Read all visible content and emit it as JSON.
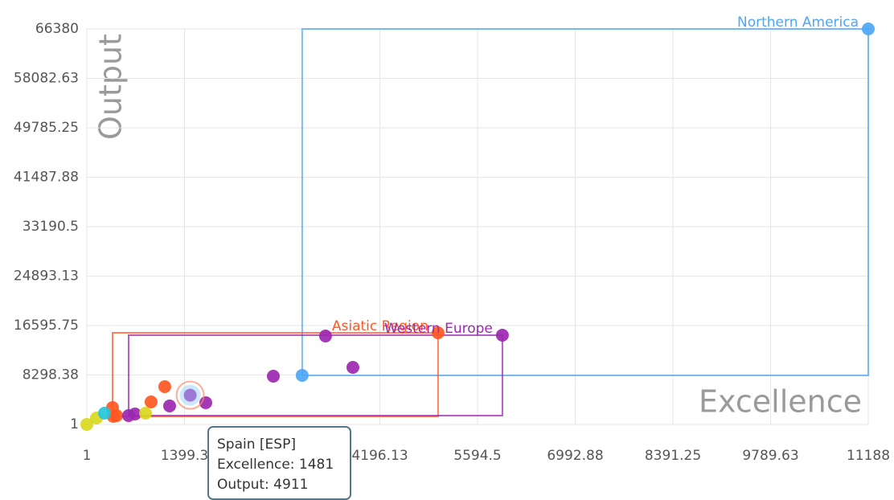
{
  "chart_data": {
    "type": "scatter",
    "x_label": "Excellence",
    "y_label": "Output",
    "xlim": [
      1,
      11188
    ],
    "ylim": [
      1,
      66380
    ],
    "xticks": [
      1,
      1399.3,
      4196.13,
      5594.5,
      6992.88,
      8391.25,
      9789.63,
      11188
    ],
    "yticks": [
      1,
      8298.38,
      16595.75,
      24893.13,
      33190.5,
      41487.88,
      49785.25,
      58082.63,
      66380
    ],
    "grid": true,
    "series": [
      {
        "name": "Northern America",
        "color": "#4da6f5",
        "x": [
          11188,
          3084
        ],
        "values": [
          66380,
          8232
        ]
      },
      {
        "name": "Asiatic Region",
        "color": "#ff5722",
        "x": [
          5029,
          1117,
          921,
          369,
          427,
          380
        ],
        "values": [
          15385,
          6343,
          3780,
          2835,
          1485,
          1350
        ]
      },
      {
        "name": "Western Europe",
        "color": "#9c27b0",
        "x": [
          5950,
          3418,
          2671,
          3810,
          1481,
          1704,
          1186,
          599,
          691
        ],
        "values": [
          14980,
          14845,
          8098,
          9582,
          4911,
          3644,
          3104,
          1485,
          1755
        ]
      },
      {
        "color": "#d8d81e",
        "x": [
          1,
          139,
          841
        ],
        "values": [
          1,
          1080,
          1890
        ]
      },
      {
        "color": "#26c6da",
        "x": [
          254
        ],
        "values": [
          1890
        ]
      }
    ],
    "tooltip": {
      "title": "Spain [ESP]",
      "lines": [
        "Excellence: 1481",
        "Output: 4911"
      ]
    }
  }
}
